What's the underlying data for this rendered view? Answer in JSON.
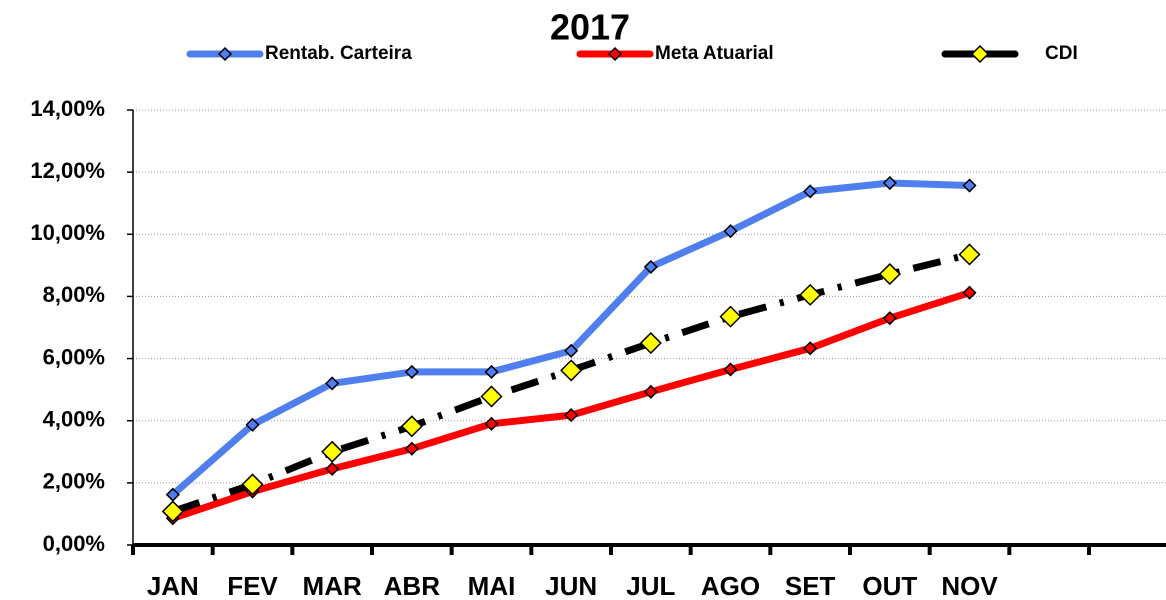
{
  "chart_data": {
    "type": "line",
    "title": "2017",
    "categories": [
      "JAN",
      "FEV",
      "MAR",
      "ABR",
      "MAI",
      "JUN",
      "JUL",
      "AGO",
      "SET",
      "OUT",
      "NOV",
      null
    ],
    "series": [
      {
        "name": "Rentab. Carteira",
        "color": "#4f7fef",
        "marker_color": "#4f7fef",
        "style": "solid",
        "values": [
          1.62,
          3.87,
          5.2,
          5.57,
          5.57,
          6.25,
          8.95,
          10.1,
          11.38,
          11.65,
          11.57,
          null
        ]
      },
      {
        "name": "Meta Atuarial",
        "color": "#ff0000",
        "marker_color": "#ff0000",
        "style": "solid",
        "values": [
          0.86,
          1.72,
          2.45,
          3.1,
          3.9,
          4.18,
          4.93,
          5.65,
          6.33,
          7.3,
          8.12,
          null
        ]
      },
      {
        "name": "CDI",
        "color": "#000000",
        "marker_color": "#ffff00",
        "style": "dashdot",
        "values": [
          1.08,
          1.95,
          3.0,
          3.82,
          4.78,
          5.62,
          6.5,
          7.35,
          8.05,
          8.72,
          9.35,
          null
        ]
      }
    ],
    "ylim": [
      0,
      14
    ],
    "yticks": [
      {
        "value": 0,
        "label": "0,00%"
      },
      {
        "value": 2,
        "label": "2,00%"
      },
      {
        "value": 4,
        "label": "4,00%"
      },
      {
        "value": 6,
        "label": "6,00%"
      },
      {
        "value": 8,
        "label": "8,00%"
      },
      {
        "value": 10,
        "label": "10,00%"
      },
      {
        "value": 12,
        "label": "12,00%"
      },
      {
        "value": 14,
        "label": "14,00%"
      }
    ],
    "grid": true,
    "legend": "top"
  }
}
